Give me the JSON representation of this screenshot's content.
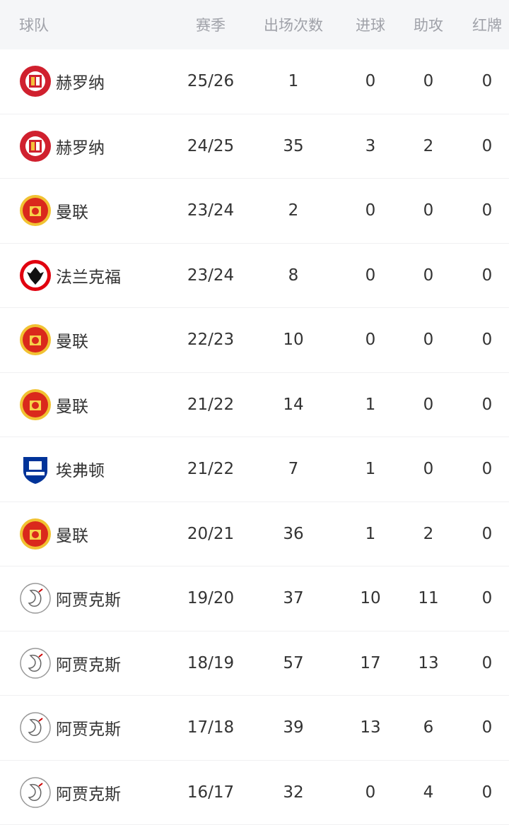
{
  "header": {
    "team": "球队",
    "season": "赛季",
    "apps": "出场次数",
    "goals": "进球",
    "assists": "助攻",
    "red": "红牌"
  },
  "rows": [
    {
      "team": "赫罗纳",
      "logo": "girona-logo",
      "season": "25/26",
      "apps": "1",
      "goals": "0",
      "assists": "0",
      "red": "0"
    },
    {
      "team": "赫罗纳",
      "logo": "girona-logo",
      "season": "24/25",
      "apps": "35",
      "goals": "3",
      "assists": "2",
      "red": "0"
    },
    {
      "team": "曼联",
      "logo": "manutd-logo",
      "season": "23/24",
      "apps": "2",
      "goals": "0",
      "assists": "0",
      "red": "0"
    },
    {
      "team": "法兰克福",
      "logo": "frankfurt-logo",
      "season": "23/24",
      "apps": "8",
      "goals": "0",
      "assists": "0",
      "red": "0"
    },
    {
      "team": "曼联",
      "logo": "manutd-logo",
      "season": "22/23",
      "apps": "10",
      "goals": "0",
      "assists": "0",
      "red": "0"
    },
    {
      "team": "曼联",
      "logo": "manutd-logo",
      "season": "21/22",
      "apps": "14",
      "goals": "1",
      "assists": "0",
      "red": "0"
    },
    {
      "team": "埃弗顿",
      "logo": "everton-logo",
      "season": "21/22",
      "apps": "7",
      "goals": "1",
      "assists": "0",
      "red": "0"
    },
    {
      "team": "曼联",
      "logo": "manutd-logo",
      "season": "20/21",
      "apps": "36",
      "goals": "1",
      "assists": "2",
      "red": "0"
    },
    {
      "team": "阿贾克斯",
      "logo": "ajax-logo",
      "season": "19/20",
      "apps": "37",
      "goals": "10",
      "assists": "11",
      "red": "0"
    },
    {
      "team": "阿贾克斯",
      "logo": "ajax-logo",
      "season": "18/19",
      "apps": "57",
      "goals": "17",
      "assists": "13",
      "red": "0"
    },
    {
      "team": "阿贾克斯",
      "logo": "ajax-logo",
      "season": "17/18",
      "apps": "39",
      "goals": "13",
      "assists": "6",
      "red": "0"
    },
    {
      "team": "阿贾克斯",
      "logo": "ajax-logo",
      "season": "16/17",
      "apps": "32",
      "goals": "0",
      "assists": "4",
      "red": "0"
    }
  ]
}
